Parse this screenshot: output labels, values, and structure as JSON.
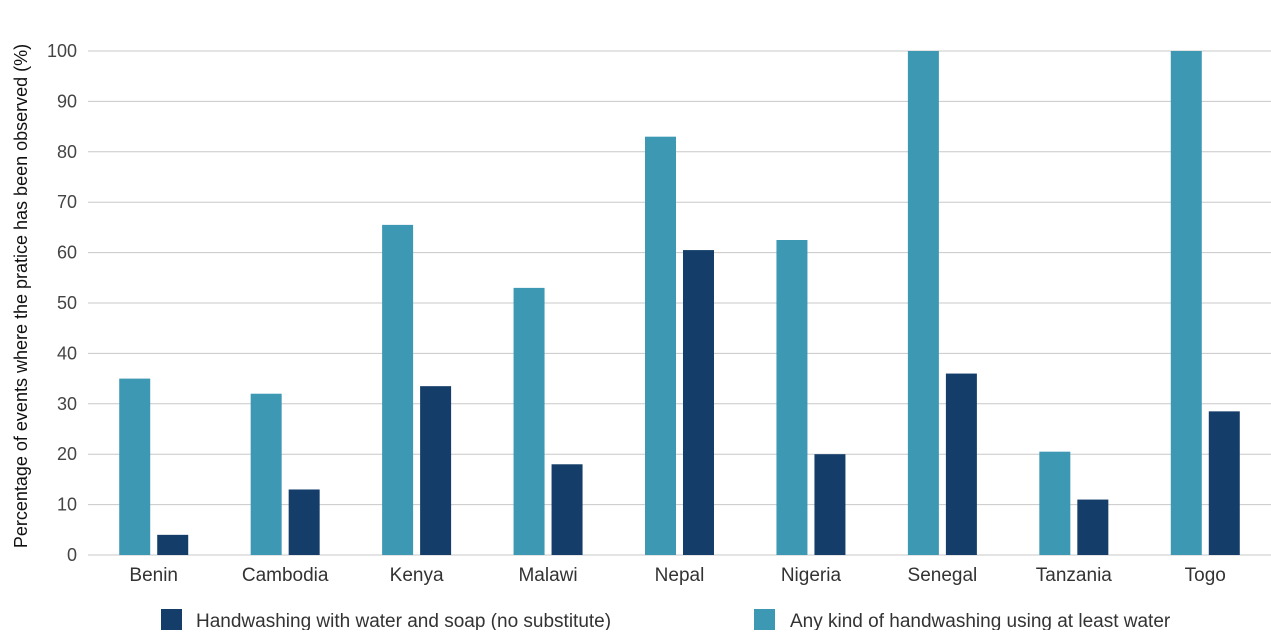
{
  "colors": {
    "soap": "#143e69",
    "water": "#3d98b4",
    "grid": "#c8c8c8"
  },
  "chart_data": {
    "type": "bar",
    "categories": [
      "Benin",
      "Cambodia",
      "Kenya",
      "Malawi",
      "Nepal",
      "Nigeria",
      "Senegal",
      "Tanzania",
      "Togo"
    ],
    "series": [
      {
        "name": "Any kind of handwashing using at least water",
        "values": [
          35,
          32,
          65.5,
          53,
          83,
          62.5,
          100,
          20.5,
          100
        ]
      },
      {
        "name": "Handwashing with water and soap (no substitute)",
        "values": [
          4,
          13,
          33.5,
          18,
          60.5,
          20,
          36,
          11,
          28.5
        ]
      }
    ],
    "title": "",
    "xlabel": "",
    "ylabel": "Percentage of events where the pratice has been observed (%)",
    "ylim": [
      0,
      100
    ],
    "yticks": [
      0,
      10,
      20,
      30,
      40,
      50,
      60,
      70,
      80,
      90,
      100
    ],
    "grid": true,
    "legend": {
      "placement": "bottom",
      "entries": [
        "Handwashing with water and soap (no substitute)",
        "Any kind of handwashing using at least water"
      ]
    }
  }
}
